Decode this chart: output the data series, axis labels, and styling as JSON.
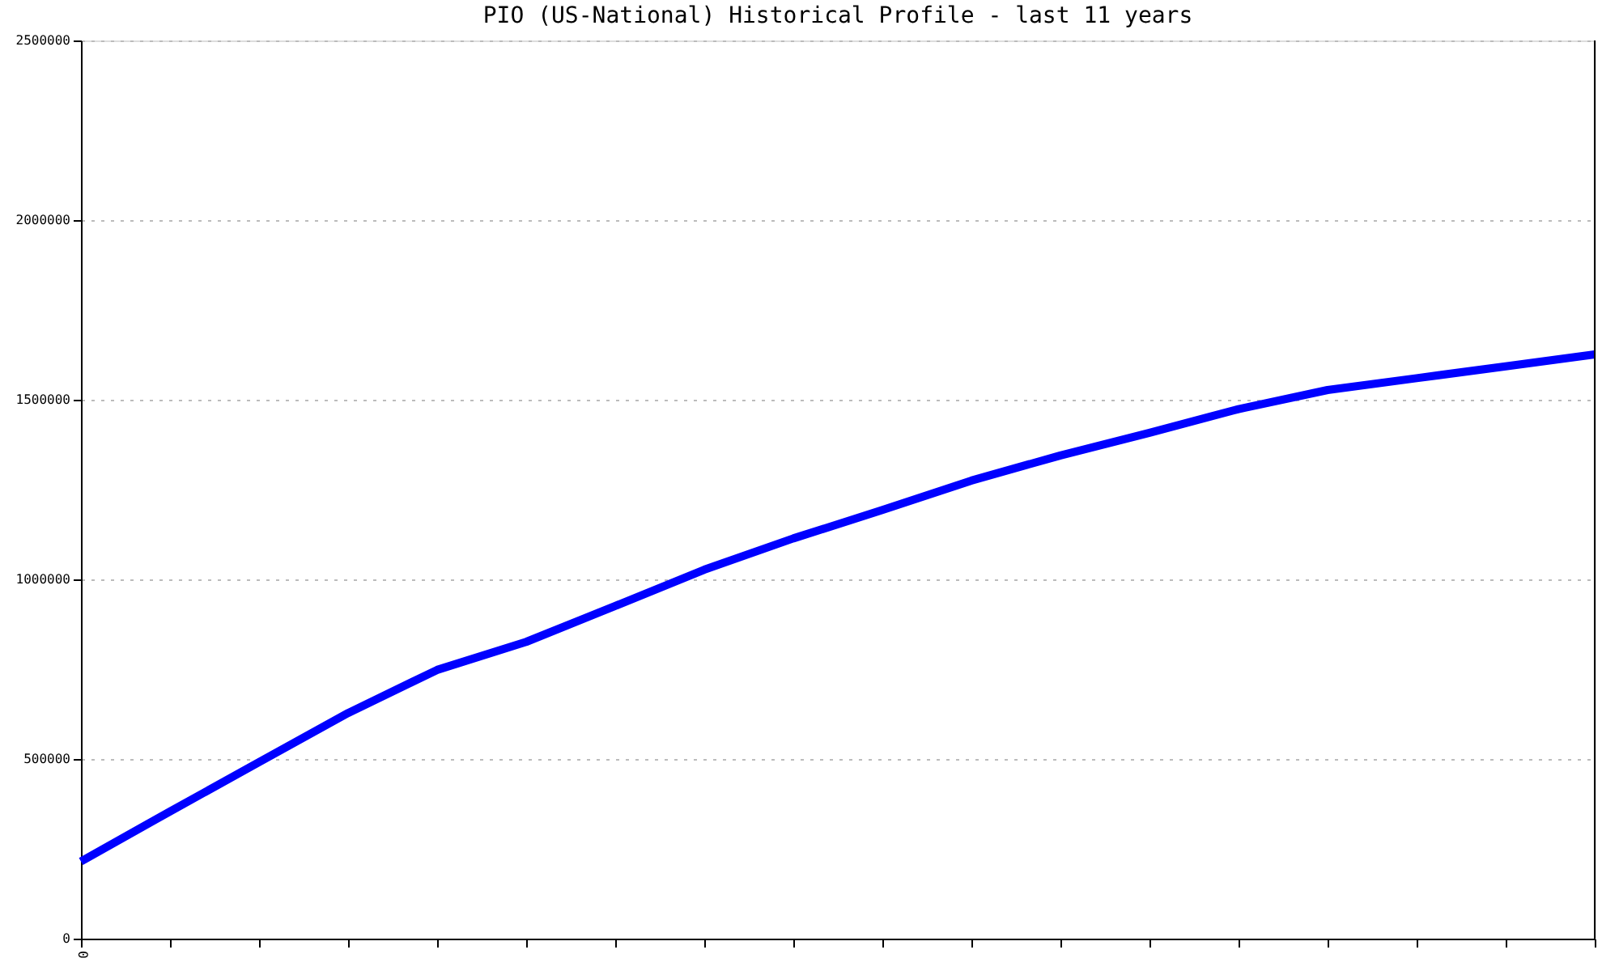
{
  "chart_data": {
    "type": "line",
    "title": "PIO (US-National) Historical Profile - last 11 years",
    "categories": [
      "0",
      null,
      null,
      null,
      null,
      null,
      null,
      null,
      null,
      null,
      null,
      null,
      null,
      null,
      null,
      null,
      null,
      null
    ],
    "series": [
      {
        "color": "#0000ff",
        "values": [
          215000,
          354000,
          491000,
          628000,
          748000,
          826000,
          926000,
          1027000,
          1114000,
          1193000,
          1275000,
          1345000,
          1408000,
          1474000,
          1527000,
          1560000,
          1593000,
          1626000
        ]
      }
    ],
    "ylim": [
      0,
      2500000
    ],
    "yticks": [
      0,
      500000,
      1000000,
      1500000,
      2000000,
      2500000
    ],
    "grid": "y",
    "marker": "none",
    "line_style": "solid"
  }
}
